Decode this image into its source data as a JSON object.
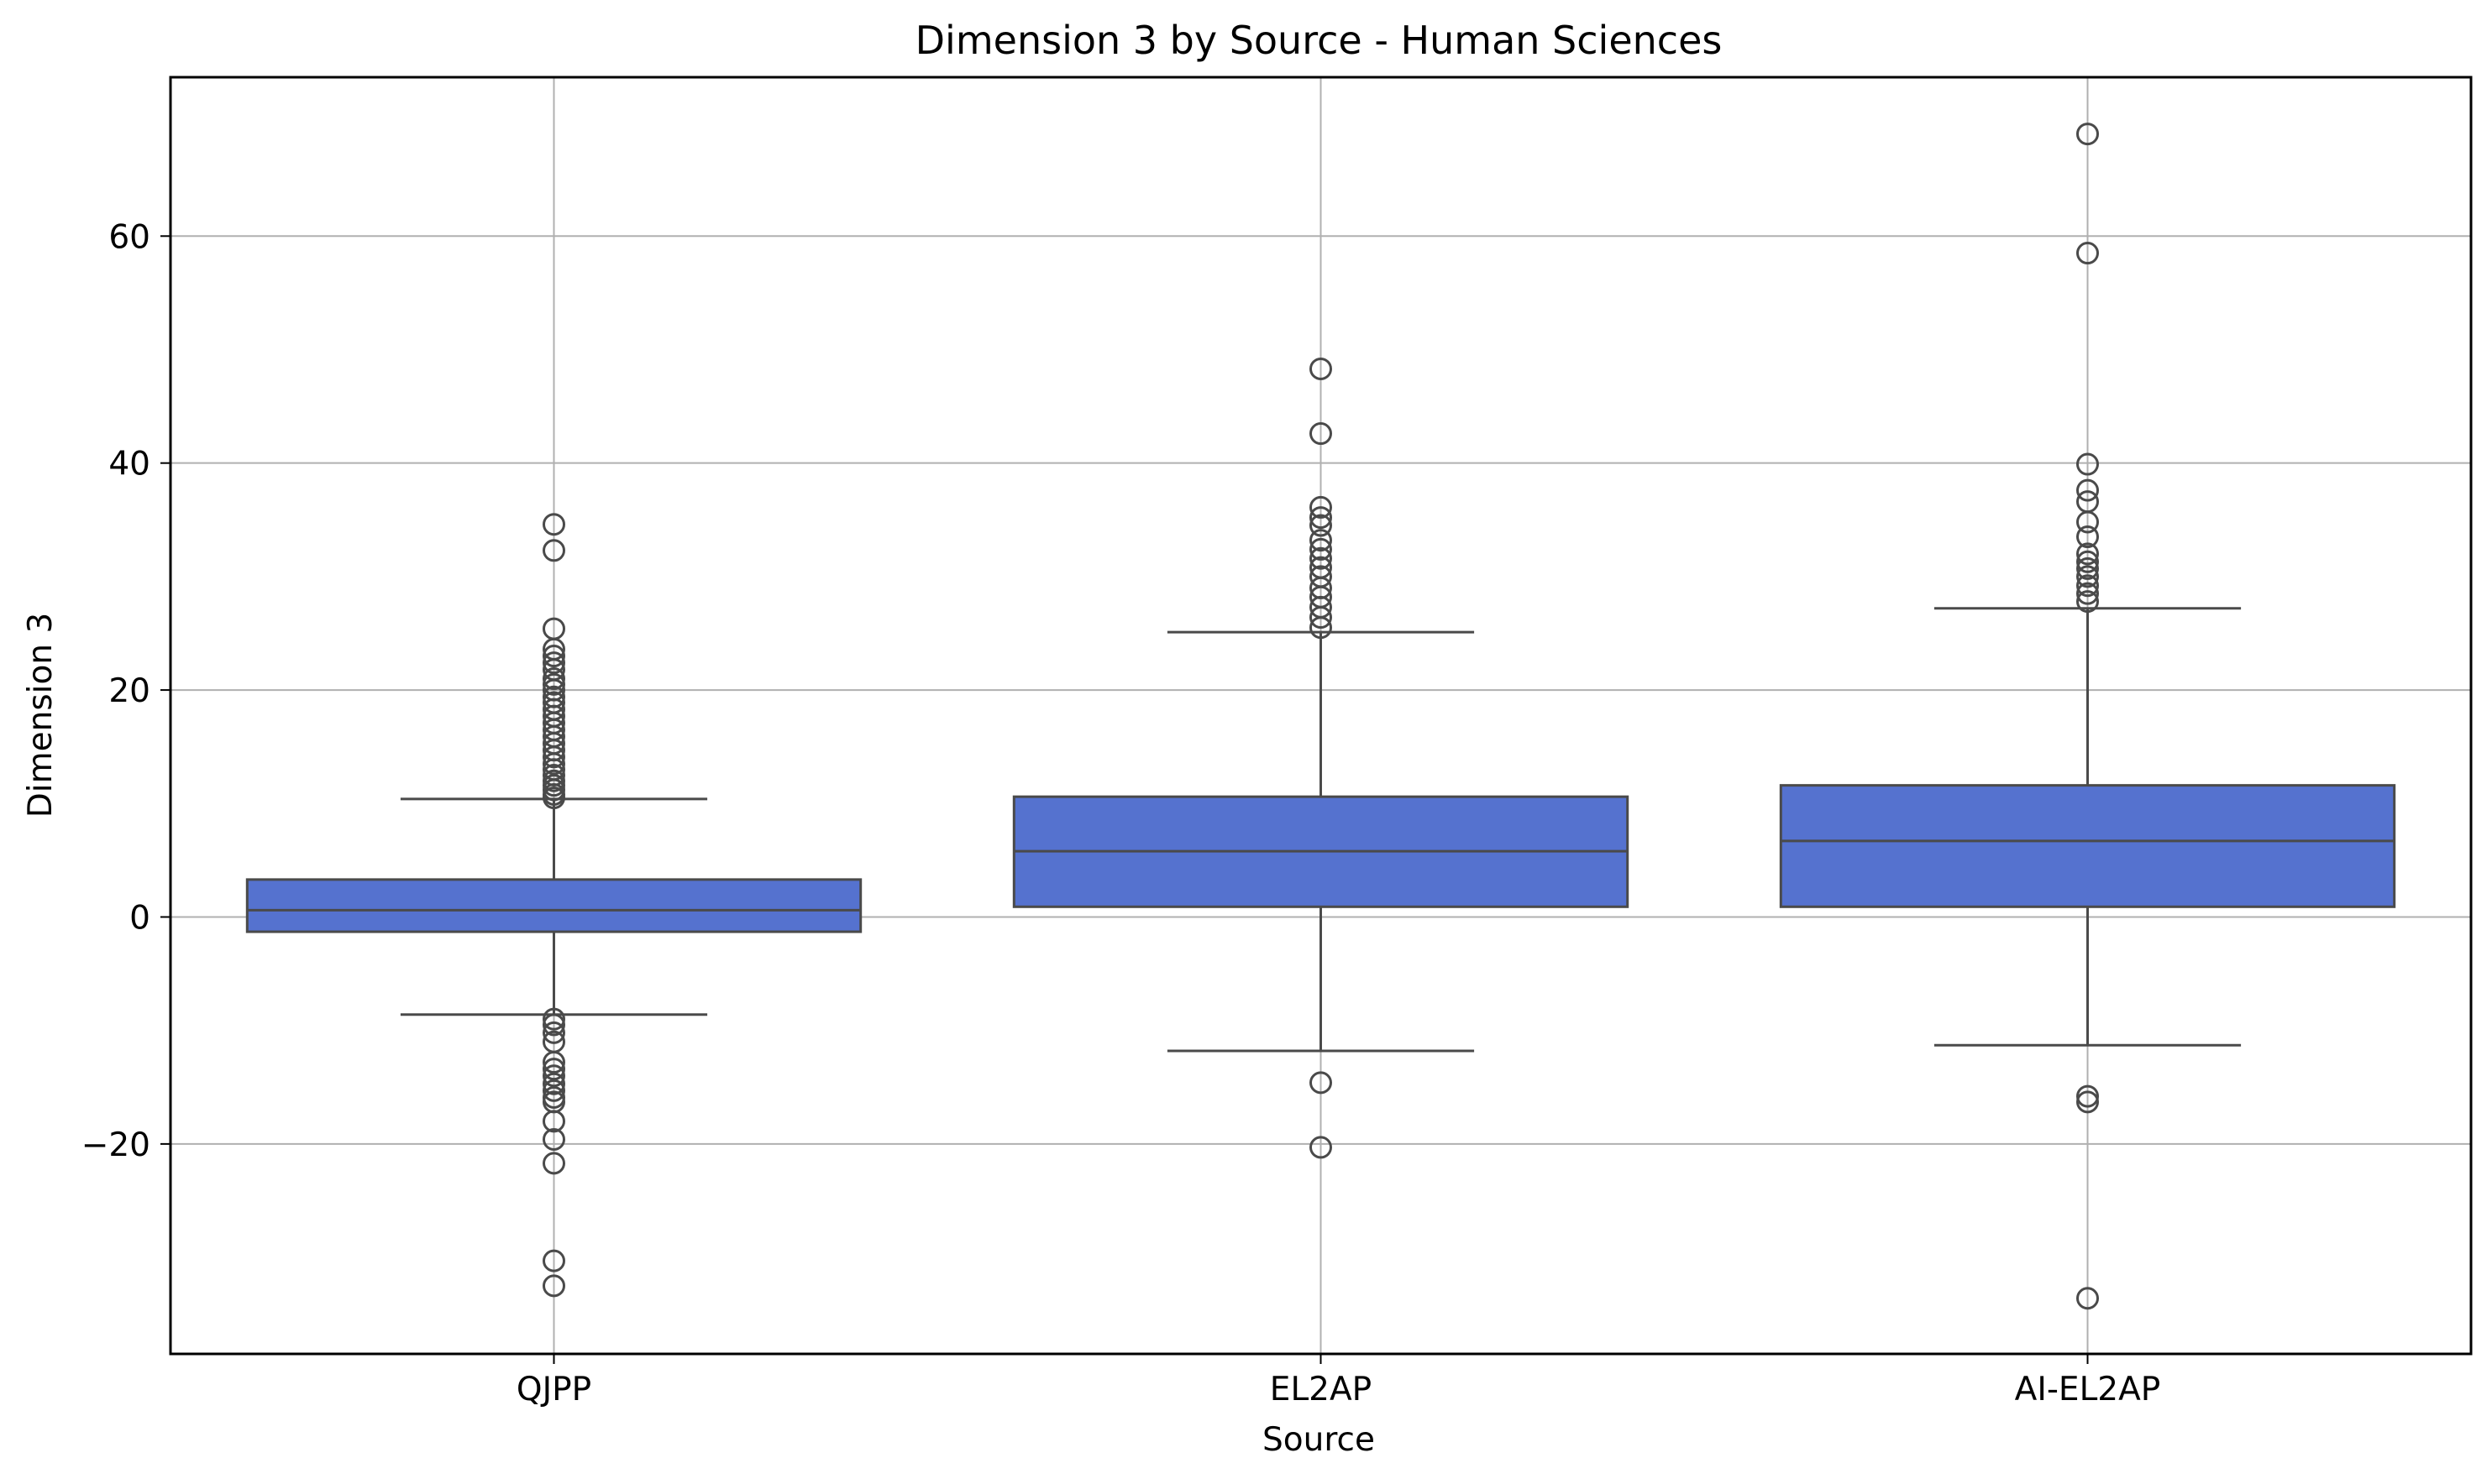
{
  "chart_data": {
    "type": "box",
    "title": "Dimension 3 by Source - Human Sciences",
    "xlabel": "Source",
    "ylabel": "Dimension 3",
    "categories": [
      "QJPP",
      "EL2AP",
      "AI-EL2AP"
    ],
    "ylim": [
      -38.5,
      74
    ],
    "yticks": [
      -20,
      0,
      20,
      40,
      60
    ],
    "ytick_labels": [
      "−20",
      "0",
      "20",
      "40",
      "60"
    ],
    "grid": true,
    "colors": {
      "box_fill": "#5572cf",
      "line": "#4a4a4a",
      "grid": "#b0b0b0"
    },
    "boxes": [
      {
        "category": "QJPP",
        "whisker_low": -8.6,
        "q1": -1.3,
        "median": 0.6,
        "q3": 3.3,
        "whisker_high": 10.4,
        "outliers": [
          34.6,
          32.3,
          25.4,
          23.6,
          23.0,
          22.4,
          21.8,
          21.0,
          20.5,
          20.0,
          19.4,
          18.9,
          18.3,
          17.7,
          17.1,
          16.5,
          15.9,
          15.3,
          14.7,
          14.1,
          13.5,
          13.0,
          12.5,
          12.0,
          11.6,
          11.2,
          10.8,
          10.5,
          -9.0,
          -9.5,
          -10.2,
          -11.0,
          -12.8,
          -13.4,
          -14.0,
          -14.7,
          -15.3,
          -15.9,
          -16.3,
          -18.0,
          -19.6,
          -21.7,
          -30.3,
          -32.5
        ]
      },
      {
        "category": "EL2AP",
        "whisker_low": -11.8,
        "q1": 0.9,
        "median": 5.8,
        "q3": 10.6,
        "whisker_high": 25.1,
        "outliers": [
          48.3,
          42.6,
          36.1,
          35.2,
          34.5,
          33.2,
          32.4,
          31.6,
          30.8,
          30.0,
          29.0,
          28.2,
          27.3,
          26.4,
          25.5,
          -14.6,
          -20.3
        ]
      },
      {
        "category": "AI-EL2AP",
        "whisker_low": -11.3,
        "q1": 0.9,
        "median": 6.7,
        "q3": 11.6,
        "whisker_high": 27.2,
        "outliers": [
          69.0,
          58.5,
          39.9,
          37.6,
          36.6,
          34.8,
          33.5,
          32.0,
          31.3,
          30.7,
          30.0,
          29.2,
          28.5,
          27.8,
          -15.8,
          -16.3,
          -33.6
        ]
      }
    ]
  }
}
